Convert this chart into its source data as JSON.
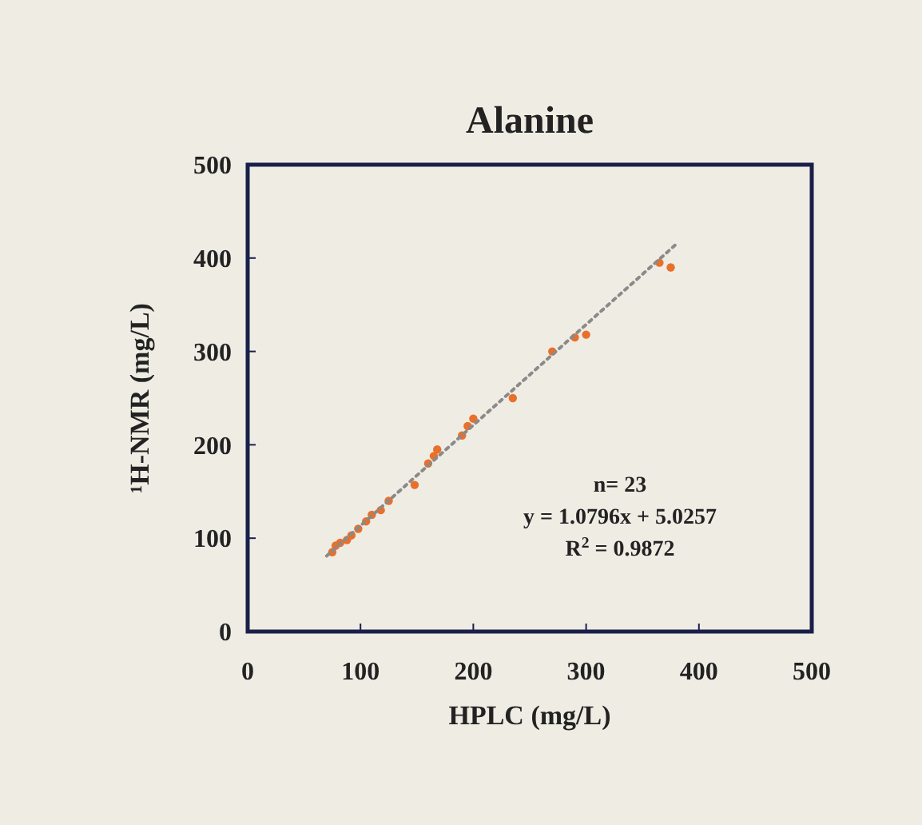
{
  "chart_data": {
    "type": "scatter",
    "title": "Alanine",
    "xlabel": "HPLC (mg/L)",
    "ylabel": "¹H-NMR (mg/L)",
    "xlim": [
      0,
      500
    ],
    "ylim": [
      0,
      500
    ],
    "xticks": [
      0,
      100,
      200,
      300,
      400,
      500
    ],
    "yticks": [
      0,
      100,
      200,
      300,
      400,
      500
    ],
    "marker": "circle",
    "series": [
      {
        "color": "#e8702a",
        "x": [
          75,
          78,
          82,
          88,
          92,
          98,
          105,
          110,
          118,
          125,
          148,
          160,
          165,
          168,
          190,
          195,
          200,
          235,
          270,
          290,
          300,
          365,
          375
        ],
        "values": [
          85,
          92,
          95,
          98,
          103,
          110,
          118,
          125,
          130,
          140,
          157,
          180,
          188,
          195,
          210,
          220,
          228,
          250,
          300,
          315,
          318,
          395,
          390
        ]
      },
      {
        "type": "line",
        "color": "#8a8a8a",
        "line_style": "dotted",
        "marker": "none",
        "x": [
          70,
          380
        ],
        "values": [
          81,
          415
        ]
      }
    ],
    "annotations": [
      "n= 23",
      "y = 1.0796x + 5.0257",
      "R$^{2}$ = 0.9872"
    ]
  }
}
